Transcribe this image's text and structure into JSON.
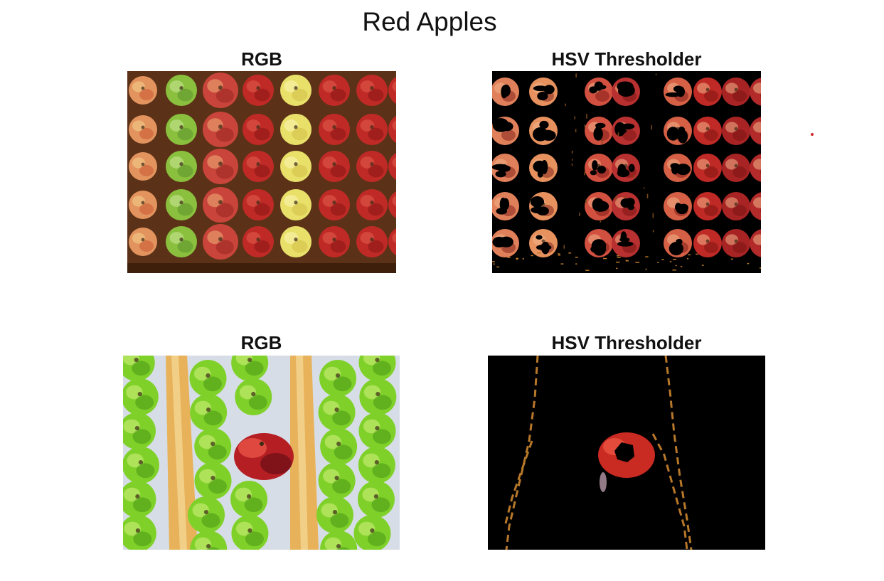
{
  "figure": {
    "title": "Red Apples"
  },
  "panels": [
    {
      "title": "RGB"
    },
    {
      "title": "HSV Thresholder"
    },
    {
      "title": "RGB"
    },
    {
      "title": "HSV Thresholder"
    }
  ],
  "colors": {
    "wood_background": "#5b3218",
    "red_apple": "#c02a26",
    "yellow_apple": "#e9e06a",
    "green_apple": "#8ac03e",
    "bright_green_apple": "#7fd12a",
    "conveyor_tan": "#e7b25a",
    "mask_black": "#000000"
  }
}
